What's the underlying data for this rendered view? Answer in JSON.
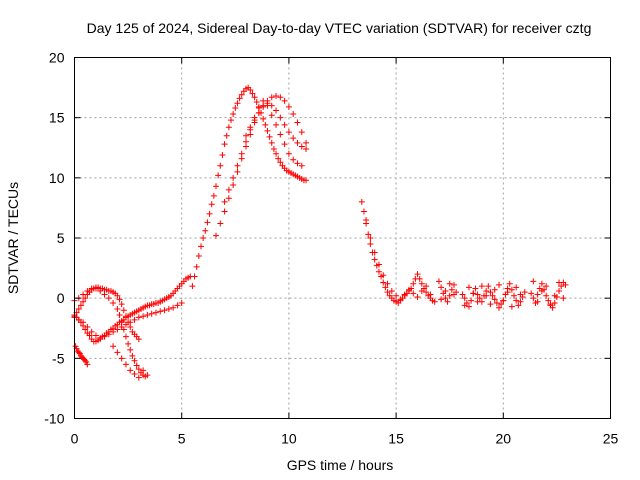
{
  "chart_data": {
    "type": "scatter",
    "title": "Day 125 of 2024, Sidereal Day-to-day VTEC variation (SDTVAR) for receiver cztg",
    "xlabel": "GPS time / hours",
    "ylabel": "SDTVAR / TECUs",
    "xlim": [
      0,
      25
    ],
    "ylim": [
      -10,
      20
    ],
    "xticks": [
      0,
      5,
      10,
      15,
      20,
      25
    ],
    "yticks": [
      -10,
      -5,
      0,
      5,
      10,
      15,
      20
    ],
    "xtick_labels": [
      "0",
      "5",
      "10",
      "15",
      "20",
      "25"
    ],
    "ytick_labels": [
      "-10",
      "-5",
      "0",
      "5",
      "10",
      "15",
      "20"
    ],
    "grid": true,
    "marker": "+",
    "color": "#ff0000",
    "series": [
      {
        "name": "SDTVAR",
        "x": [
          0.0,
          0.1,
          0.2,
          0.3,
          0.4,
          0.5,
          0.6,
          0.7,
          0.8,
          0.9,
          1.0,
          1.1,
          1.2,
          1.3,
          1.4,
          1.5,
          1.6,
          1.7,
          1.8,
          1.9,
          2.0,
          2.1,
          2.2,
          2.3,
          2.4,
          2.5,
          2.6,
          2.7,
          2.8,
          2.9,
          3.0,
          3.1,
          3.2,
          3.3,
          3.4,
          3.5,
          3.6,
          3.7,
          3.8,
          3.9,
          4.0,
          4.1,
          4.2,
          4.3,
          4.4,
          4.5,
          4.6,
          4.7,
          4.8,
          4.9,
          5.0,
          5.1,
          5.2,
          5.3,
          5.4,
          0.0,
          0.1,
          0.2,
          0.3,
          0.4,
          0.5,
          0.6,
          0.7,
          0.8,
          0.9,
          1.0,
          1.1,
          1.2,
          1.3,
          1.4,
          1.5,
          1.6,
          1.7,
          1.8,
          1.9,
          2.0,
          2.1,
          2.2,
          2.3,
          2.4,
          2.5,
          2.6,
          2.7,
          2.8,
          2.9,
          3.0,
          0.0,
          0.2,
          0.4,
          0.6,
          0.8,
          1.0,
          1.2,
          1.4,
          1.6,
          1.8,
          2.0,
          2.2,
          2.4,
          2.6,
          2.8,
          3.0,
          3.2,
          3.4,
          3.6,
          3.8,
          4.0,
          4.2,
          4.4,
          4.6,
          4.8,
          5.0,
          0.0,
          0.2,
          0.4,
          0.6,
          0.8,
          1.0,
          1.2,
          1.4,
          1.6,
          1.8,
          2.0,
          2.1,
          2.2,
          2.3,
          2.4,
          2.5,
          2.6,
          2.7,
          2.8,
          2.9,
          3.0,
          3.1,
          3.2,
          3.3,
          3.4,
          0.05,
          0.1,
          0.15,
          0.2,
          0.25,
          0.3,
          0.35,
          0.4,
          0.45,
          0.5,
          0.55,
          0.6,
          1.8,
          2.0,
          2.2,
          2.4,
          2.6,
          2.8,
          3.0,
          3.2,
          5.5,
          5.6,
          5.7,
          5.8,
          5.9,
          6.0,
          6.1,
          6.2,
          6.3,
          6.4,
          6.5,
          6.6,
          6.7,
          6.8,
          6.9,
          7.0,
          7.1,
          7.2,
          7.3,
          7.4,
          7.5,
          7.6,
          7.7,
          7.8,
          7.9,
          8.0,
          8.1,
          8.2,
          8.3,
          8.4,
          8.5,
          8.6,
          8.7,
          8.8,
          8.9,
          9.0,
          9.1,
          9.2,
          9.3,
          9.4,
          9.5,
          9.6,
          9.7,
          9.8,
          9.9,
          10.0,
          10.1,
          10.2,
          10.3,
          10.4,
          10.5,
          10.6,
          10.7,
          10.8,
          6.6,
          6.8,
          7.0,
          7.2,
          7.4,
          7.6,
          7.8,
          8.0,
          8.2,
          8.4,
          8.6,
          8.8,
          9.0,
          9.2,
          9.4,
          9.6,
          9.8,
          10.0,
          10.2,
          10.4,
          10.6,
          10.8,
          7.0,
          7.2,
          7.4,
          7.6,
          7.8,
          8.0,
          8.2,
          8.4,
          8.6,
          8.8,
          9.0,
          9.2,
          9.4,
          9.6,
          9.8,
          10.0,
          10.2,
          10.4,
          10.6,
          8.0,
          8.2,
          8.4,
          8.6,
          8.8,
          9.0,
          9.2,
          9.4,
          9.6,
          9.8,
          10.0,
          10.2,
          10.4,
          10.6,
          10.8,
          13.4,
          13.5,
          13.6,
          13.7,
          13.8,
          13.9,
          14.0,
          14.1,
          14.2,
          14.3,
          14.4,
          14.5,
          14.6,
          14.7,
          14.8,
          14.9,
          15.0,
          15.1,
          15.2,
          15.3,
          15.4,
          15.5,
          15.6,
          15.7,
          15.8,
          15.9,
          16.0,
          16.1,
          16.2,
          16.3,
          16.4,
          16.5,
          16.6,
          16.7,
          16.8,
          13.6,
          13.8,
          14.0,
          14.2,
          14.4,
          14.6,
          14.8,
          15.0,
          15.2,
          15.4,
          15.6,
          15.8,
          16.0,
          16.2,
          16.4,
          16.6,
          17.0,
          17.1,
          17.2,
          17.3,
          17.4,
          17.5,
          17.6,
          17.7,
          17.8,
          18.1,
          18.2,
          18.3,
          18.4,
          18.5,
          18.6,
          18.7,
          18.8,
          18.9,
          19.0,
          19.1,
          19.2,
          19.3,
          19.4,
          19.5,
          19.6,
          19.7,
          19.8,
          19.9,
          20.0,
          20.1,
          20.2,
          20.3,
          20.4,
          20.5,
          20.6,
          20.7,
          20.8,
          20.9,
          21.0,
          21.3,
          21.4,
          21.5,
          21.6,
          21.7,
          21.8,
          21.9,
          22.0,
          22.1,
          22.2,
          22.3,
          22.4,
          22.5,
          22.6,
          22.7,
          22.8,
          22.9,
          17.1,
          17.3,
          17.5,
          17.7,
          18.2,
          18.4,
          18.6,
          18.8,
          19.0,
          19.2,
          19.4,
          19.6,
          19.8,
          20.0,
          20.2,
          20.4,
          20.6,
          20.8,
          21.4,
          21.6,
          21.8,
          22.0,
          22.2,
          22.4,
          22.6,
          22.8
        ],
        "y": [
          -1.5,
          -1.6,
          -1.8,
          -2.0,
          -2.3,
          -2.6,
          -2.9,
          -3.1,
          -3.4,
          -3.6,
          -3.6,
          -3.5,
          -3.4,
          -3.2,
          -3.1,
          -2.9,
          -2.8,
          -2.6,
          -2.5,
          -2.3,
          -2.2,
          -2.0,
          -1.9,
          -1.8,
          -1.6,
          -1.5,
          -1.4,
          -1.3,
          -1.2,
          -1.1,
          -1.0,
          -0.9,
          -0.8,
          -0.7,
          -0.6,
          -0.6,
          -0.5,
          -0.5,
          -0.4,
          -0.4,
          -0.3,
          -0.2,
          -0.1,
          0.0,
          0.1,
          0.2,
          0.4,
          0.6,
          0.8,
          1.0,
          1.2,
          1.4,
          1.6,
          1.7,
          1.8,
          -1.4,
          -1.2,
          -0.9,
          -0.6,
          -0.3,
          0.0,
          0.3,
          0.5,
          0.7,
          0.8,
          0.9,
          0.9,
          0.8,
          0.8,
          0.7,
          0.7,
          0.6,
          0.6,
          0.5,
          0.4,
          0.2,
          -0.1,
          -0.5,
          -1.0,
          -1.5,
          -2.0,
          -2.4,
          -2.8,
          -3.0,
          -3.2,
          -3.4,
          -1.6,
          -1.8,
          -2.0,
          -2.4,
          -2.8,
          -3.1,
          -3.3,
          -3.2,
          -3.0,
          -2.8,
          -2.6,
          -2.4,
          -2.2,
          -2.0,
          -1.8,
          -1.6,
          -1.5,
          -1.4,
          -1.3,
          -1.2,
          -1.1,
          -1.0,
          -0.9,
          -0.8,
          -0.6,
          -0.4,
          -0.2,
          0.0,
          0.3,
          0.6,
          0.8,
          0.8,
          0.6,
          0.3,
          0.0,
          -0.4,
          -0.9,
          -1.4,
          -2.0,
          -2.6,
          -3.2,
          -3.8,
          -4.3,
          -4.8,
          -5.2,
          -5.6,
          -5.9,
          -6.2,
          -6.4,
          -6.5,
          -6.4,
          -4.0,
          -4.2,
          -4.4,
          -4.5,
          -4.6,
          -4.8,
          -4.9,
          -5.0,
          -5.1,
          -5.2,
          -5.3,
          -5.5,
          -4.0,
          -4.5,
          -5.0,
          -5.5,
          -6.0,
          -6.3,
          -6.6,
          -6.0,
          1.0,
          1.8,
          2.6,
          3.5,
          4.3,
          5.0,
          5.6,
          6.3,
          7.0,
          7.8,
          8.5,
          9.3,
          10.2,
          11.0,
          11.9,
          12.8,
          13.5,
          14.2,
          14.8,
          15.3,
          15.8,
          16.2,
          16.6,
          16.9,
          17.2,
          17.4,
          17.5,
          17.3,
          17.0,
          16.7,
          16.3,
          15.9,
          15.4,
          14.9,
          14.4,
          13.9,
          13.4,
          12.9,
          12.4,
          12.0,
          11.6,
          11.3,
          11.0,
          10.8,
          10.6,
          10.5,
          10.4,
          10.3,
          10.2,
          10.1,
          10.0,
          9.9,
          9.8,
          9.8,
          5.2,
          6.2,
          7.2,
          8.3,
          9.4,
          10.5,
          11.6,
          12.6,
          13.6,
          14.6,
          15.4,
          16.0,
          16.4,
          16.7,
          16.8,
          16.7,
          16.4,
          15.9,
          15.3,
          14.6,
          13.8,
          12.9,
          8.0,
          9.0,
          10.0,
          11.0,
          12.0,
          13.0,
          14.0,
          15.0,
          15.8,
          16.4,
          16.0,
          15.2,
          14.4,
          13.6,
          12.8,
          12.0,
          11.5,
          11.2,
          11.0,
          13.5,
          14.2,
          14.8,
          15.4,
          15.9,
          16.2,
          16.0,
          15.6,
          15.0,
          14.4,
          13.8,
          13.3,
          12.9,
          12.6,
          12.4,
          8.0,
          7.2,
          6.2,
          5.3,
          4.5,
          3.8,
          3.2,
          2.7,
          2.2,
          1.8,
          1.3,
          0.9,
          0.5,
          0.2,
          0.0,
          -0.2,
          -0.3,
          -0.4,
          -0.2,
          0.0,
          0.2,
          0.4,
          0.6,
          0.8,
          1.2,
          1.6,
          2.0,
          1.6,
          1.2,
          0.8,
          0.5,
          0.2,
          0.0,
          -0.2,
          -0.3,
          6.5,
          5.0,
          3.8,
          2.8,
          1.9,
          1.2,
          0.6,
          0.2,
          -0.1,
          0.3,
          0.7,
          0.4,
          0.1,
          0.6,
          1.0,
          0.3,
          1.4,
          0.9,
          0.4,
          0.0,
          -0.3,
          0.2,
          0.7,
          1.1,
          0.5,
          0.3,
          0.0,
          -0.4,
          -0.7,
          -0.2,
          0.4,
          0.8,
          0.3,
          0.0,
          -0.3,
          0.2,
          0.6,
          1.0,
          0.5,
          0.2,
          -0.1,
          -0.4,
          -0.8,
          -0.5,
          -0.2,
          0.3,
          0.8,
          1.2,
          0.7,
          0.2,
          -0.2,
          -0.6,
          -0.3,
          0.1,
          0.5,
          0.4,
          0.0,
          -0.4,
          0.3,
          0.8,
          1.2,
          0.7,
          0.2,
          -0.2,
          -0.5,
          -0.8,
          -0.4,
          0.1,
          0.6,
          1.0,
          1.3,
          1.1,
          -0.1,
          0.6,
          1.2,
          0.3,
          -0.6,
          0.9,
          0.4,
          -0.3,
          1.0,
          0.2,
          -0.5,
          0.7,
          1.1,
          -0.2,
          0.5,
          -0.7,
          0.9,
          0.3,
          1.4,
          -0.3,
          0.6,
          1.0,
          -0.6,
          0.2,
          1.3,
          0.0
        ]
      }
    ]
  }
}
